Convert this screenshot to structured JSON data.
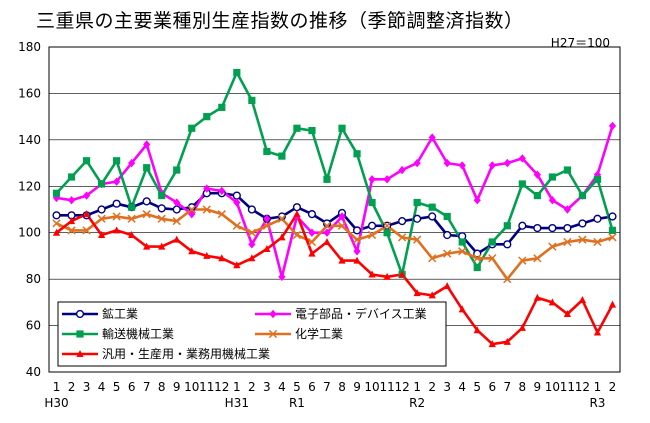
{
  "chart_data": {
    "type": "line",
    "title": "三重県の主要業種別生産指数の推移（季節調整済指数）",
    "base_note": "H27＝100",
    "ylim": [
      40,
      180
    ],
    "yticks": [
      40,
      60,
      80,
      100,
      120,
      140,
      160,
      180
    ],
    "grid": true,
    "x": [
      "1",
      "2",
      "3",
      "4",
      "5",
      "6",
      "7",
      "8",
      "9",
      "10",
      "11",
      "12",
      "1",
      "2",
      "3",
      "4",
      "5",
      "6",
      "7",
      "8",
      "9",
      "10",
      "11",
      "12",
      "1",
      "2",
      "3",
      "4",
      "5",
      "6",
      "7",
      "8",
      "9",
      "10",
      "11",
      "12",
      "1",
      "2"
    ],
    "era_labels": [
      {
        "index": 0,
        "text": "H30"
      },
      {
        "index": 12,
        "text": "H31"
      },
      {
        "index": 16,
        "text": "R1"
      },
      {
        "index": 24,
        "text": "R2"
      },
      {
        "index": 36,
        "text": "R3"
      }
    ],
    "series": [
      {
        "name": "鉱工業",
        "color": "#000080",
        "marker": "circle",
        "values": [
          107.5,
          107.5,
          107.5,
          110,
          112.5,
          111,
          113.5,
          110.5,
          110,
          111,
          117,
          117,
          116,
          110,
          106,
          107,
          111,
          108,
          104,
          108.5,
          101,
          103,
          103,
          105,
          106,
          107,
          99,
          98.5,
          91,
          95,
          95,
          103,
          102,
          102,
          102,
          104,
          106,
          107
        ]
      },
      {
        "name": "電子部品・デバイス工業",
        "color": "#ff00ff",
        "marker": "diamond",
        "values": [
          115,
          114,
          116,
          121,
          122,
          130,
          138,
          117,
          113,
          108,
          119,
          118,
          113,
          95,
          106,
          81,
          107,
          100,
          100,
          107,
          92,
          123,
          123,
          127,
          130,
          141,
          130,
          129,
          114,
          129,
          130,
          132,
          125,
          114,
          110,
          116,
          125,
          146
        ]
      },
      {
        "name": "輸送機械工業",
        "color": "#00a050",
        "marker": "square",
        "values": [
          117,
          124,
          131,
          121,
          131,
          111,
          128,
          116,
          127,
          145,
          150,
          154,
          169,
          157,
          135,
          133,
          145,
          144,
          123,
          145,
          134,
          113,
          100,
          82,
          113,
          111,
          107,
          96,
          85,
          96,
          103,
          121,
          116,
          124,
          127,
          116,
          123,
          101
        ]
      },
      {
        "name": "化学工業",
        "color": "#e07020",
        "marker": "cross",
        "values": [
          104,
          101,
          101,
          106,
          107,
          106,
          108,
          106,
          105,
          110,
          110,
          108,
          103,
          100,
          103,
          106,
          99,
          96,
          103,
          103,
          97,
          99,
          103,
          98,
          97,
          89,
          91,
          92,
          89,
          89,
          80,
          88,
          89,
          94,
          96,
          97,
          96,
          98
        ]
      },
      {
        "name": "汎用・生産用・業務用機械工業",
        "color": "#ff0000",
        "marker": "triangle",
        "values": [
          100,
          105,
          108,
          99,
          101,
          99,
          94,
          94,
          97,
          92,
          90,
          89,
          86,
          89,
          93,
          98,
          108,
          91,
          96,
          88,
          88,
          82,
          81,
          82,
          74,
          73,
          77,
          67,
          58,
          52,
          53,
          59,
          72,
          70,
          65,
          71,
          57,
          69
        ]
      }
    ]
  }
}
